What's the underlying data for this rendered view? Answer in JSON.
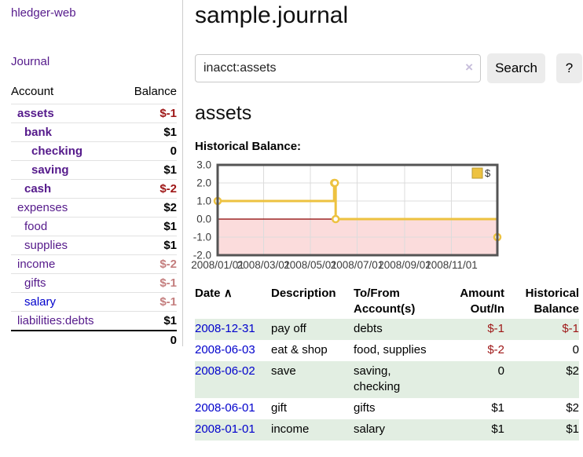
{
  "colors": {
    "link_purple": "#551a8b",
    "link_blue": "#0000cc",
    "negative_strong": "#9e1616",
    "negative_muted": "#c47e7e",
    "row_green": "#e2eee2",
    "chart_line": "#edc240",
    "chart_negative_region": "#fbdcdc",
    "chart_zero_line": "#8b0000",
    "chart_border": "#545454",
    "chart_grid": "#dcdcdc"
  },
  "app": {
    "title": "hledger-web",
    "nav": [
      {
        "label": "Journal"
      }
    ]
  },
  "sidebar": {
    "columns": {
      "account": "Account",
      "balance": "Balance"
    },
    "accounts": [
      {
        "name": "assets",
        "balance": "$-1",
        "indent": 1,
        "bold": true,
        "balance_tone": "negative",
        "link_tone": "visited"
      },
      {
        "name": "bank",
        "balance": "$1",
        "indent": 2,
        "bold": true,
        "balance_tone": "normal",
        "link_tone": "visited"
      },
      {
        "name": "checking",
        "balance": "0",
        "indent": 3,
        "bold": true,
        "balance_tone": "normal",
        "link_tone": "visited"
      },
      {
        "name": "saving",
        "balance": "$1",
        "indent": 3,
        "bold": true,
        "balance_tone": "normal",
        "link_tone": "visited"
      },
      {
        "name": "cash",
        "balance": "$-2",
        "indent": 2,
        "bold": true,
        "balance_tone": "negative",
        "link_tone": "visited"
      },
      {
        "name": "expenses",
        "balance": "$2",
        "indent": 1,
        "bold": false,
        "balance_tone": "normal",
        "link_tone": "visited"
      },
      {
        "name": "food",
        "balance": "$1",
        "indent": 2,
        "bold": false,
        "balance_tone": "normal",
        "link_tone": "visited"
      },
      {
        "name": "supplies",
        "balance": "$1",
        "indent": 2,
        "bold": false,
        "balance_tone": "normal",
        "link_tone": "visited"
      },
      {
        "name": "income",
        "balance": "$-2",
        "indent": 1,
        "bold": false,
        "balance_tone": "negative-muted",
        "link_tone": "visited"
      },
      {
        "name": "gifts",
        "balance": "$-1",
        "indent": 2,
        "bold": false,
        "balance_tone": "negative-muted",
        "link_tone": "visited"
      },
      {
        "name": "salary",
        "balance": "$-1",
        "indent": 2,
        "bold": false,
        "balance_tone": "negative-muted",
        "link_tone": "unvisited"
      },
      {
        "name": "liabilities:debts",
        "balance": "$1",
        "indent": 1,
        "bold": false,
        "balance_tone": "normal",
        "link_tone": "visited"
      }
    ],
    "total": "0"
  },
  "main": {
    "title": "sample.journal",
    "search": {
      "query": "inacct:assets",
      "clear_icon": "×",
      "button_label": "Search",
      "help_label": "?"
    },
    "account_heading": "assets",
    "chart_heading": "Historical Balance:"
  },
  "chart_data": {
    "type": "line",
    "step": true,
    "title": "Historical Balance",
    "legend": {
      "label": "$",
      "position": "top-right"
    },
    "x_range": [
      "2008-01-01",
      "2008-12-31"
    ],
    "ylim": [
      -2,
      3
    ],
    "y_ticks": [
      "3.0",
      "2.0",
      "1.0",
      "0.0",
      "-1.0",
      "-2.0"
    ],
    "x_ticks": [
      {
        "date": "2008-01-01",
        "label": "2008/01/01"
      },
      {
        "date": "2008-03-01",
        "label": "2008/03/01"
      },
      {
        "date": "2008-05-01",
        "label": "2008/05/01"
      },
      {
        "date": "2008-07-01",
        "label": "2008/07/01"
      },
      {
        "date": "2008-09-01",
        "label": "2008/09/01"
      },
      {
        "date": "2008-11-01",
        "label": "2008/11/01"
      }
    ],
    "series": [
      {
        "name": "$",
        "points": [
          {
            "date": "2008-01-01",
            "value": 1
          },
          {
            "date": "2008-06-01",
            "value": 2
          },
          {
            "date": "2008-06-02",
            "value": 2
          },
          {
            "date": "2008-06-03",
            "value": 0
          },
          {
            "date": "2008-12-31",
            "value": -1
          }
        ]
      }
    ],
    "negative_region_below": 0
  },
  "transactions": {
    "headers": {
      "date": "Date",
      "sort_icon": "∧",
      "description": "Description",
      "accounts_line1": "To/From",
      "accounts_line2": "Account(s)",
      "amount_line1": "Amount",
      "amount_line2": "Out/In",
      "balance_line1": "Historical",
      "balance_line2": "Balance"
    },
    "rows": [
      {
        "date": "2008-12-31",
        "description": "pay off",
        "accounts": "debts",
        "amount": "$-1",
        "balance": "$-1"
      },
      {
        "date": "2008-06-03",
        "description": "eat & shop",
        "accounts": "food, supplies",
        "amount": "$-2",
        "balance": "0"
      },
      {
        "date": "2008-06-02",
        "description": "save",
        "accounts": "saving, checking",
        "amount": "0",
        "balance": "$2"
      },
      {
        "date": "2008-06-01",
        "description": "gift",
        "accounts": "gifts",
        "amount": "$1",
        "balance": "$2"
      },
      {
        "date": "2008-01-01",
        "description": "income",
        "accounts": "salary",
        "amount": "$1",
        "balance": "$1"
      }
    ]
  }
}
